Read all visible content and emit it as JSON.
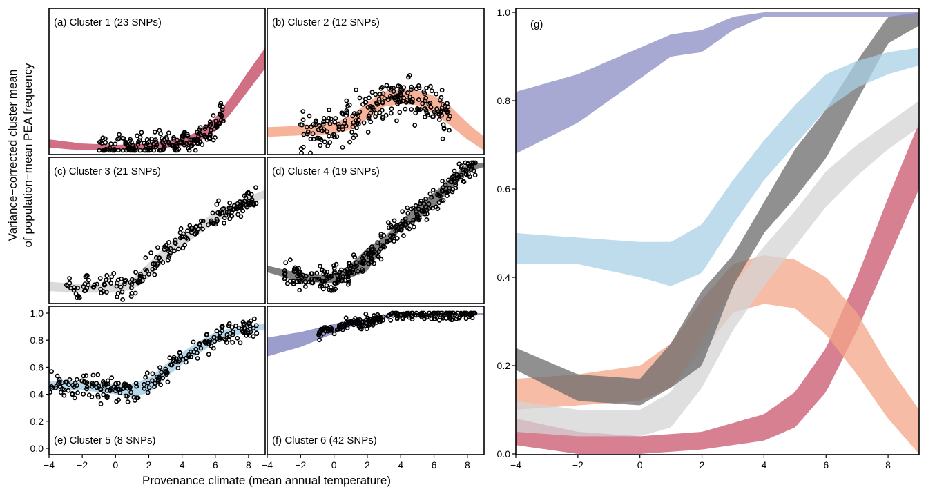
{
  "figure": {
    "ylabel_line1": "Variance−corrected cluster mean",
    "ylabel_line2": "of population−mean PEA frequency",
    "xlabel": "Provenance climate (mean annual temperature)"
  },
  "colors": {
    "cluster1": "#c9566e",
    "cluster2": "#f4a688",
    "cluster3": "#d4d4d4",
    "cluster4": "#6b6b6b",
    "cluster5": "#a9d0e6",
    "cluster6": "#8a8cc4"
  },
  "x_ticks": [
    "−4",
    "−2",
    "0",
    "2",
    "4",
    "6",
    "8"
  ],
  "y_ticks_small": [
    "0.0",
    "0.2",
    "0.4",
    "0.6",
    "0.8",
    "1.0"
  ],
  "y_ticks_g": [
    "0.0",
    "0.2",
    "0.4",
    "0.6",
    "0.8",
    "1.0"
  ],
  "chart_data": [
    {
      "panel": "a",
      "type": "scatter",
      "label": "(a) Cluster 1 (23 SNPs)",
      "cluster": 1,
      "xlim": [
        -4,
        9
      ],
      "ylim": [
        0,
        1
      ],
      "band": {
        "x": [
          -4,
          -2,
          0,
          2,
          4,
          5,
          6,
          7,
          8,
          9
        ],
        "lower": [
          0.02,
          0.0,
          0.0,
          0.01,
          0.03,
          0.06,
          0.14,
          0.28,
          0.44,
          0.6
        ],
        "upper": [
          0.08,
          0.05,
          0.04,
          0.05,
          0.09,
          0.14,
          0.24,
          0.4,
          0.58,
          0.75
        ]
      },
      "points_summary": "dense near 0 for x in [-1,5], rising scatter above x=5 up to ~0.9"
    },
    {
      "panel": "b",
      "type": "scatter",
      "label": "(b) Cluster 2 (12 SNPs)",
      "cluster": 2,
      "xlim": [
        -4,
        9
      ],
      "ylim": [
        0,
        1
      ],
      "band": {
        "x": [
          -4,
          -2,
          0,
          1,
          2,
          3,
          4,
          5,
          6,
          7,
          8,
          9
        ],
        "lower": [
          0.1,
          0.11,
          0.12,
          0.15,
          0.23,
          0.32,
          0.34,
          0.33,
          0.27,
          0.18,
          0.08,
          0.0
        ],
        "upper": [
          0.17,
          0.18,
          0.2,
          0.25,
          0.35,
          0.43,
          0.45,
          0.44,
          0.4,
          0.32,
          0.2,
          0.1
        ]
      },
      "points_summary": "broad spread 0-0.9 centred on x in [1,4]"
    },
    {
      "panel": "c",
      "type": "scatter",
      "label": "(c) Cluster 3 (21 SNPs)",
      "cluster": 3,
      "xlim": [
        -4,
        9
      ],
      "ylim": [
        0,
        1
      ],
      "band": {
        "x": [
          -4,
          -2,
          0,
          1,
          2,
          3,
          4,
          5,
          6,
          7,
          8,
          9
        ],
        "lower": [
          0.05,
          0.04,
          0.04,
          0.06,
          0.15,
          0.28,
          0.38,
          0.47,
          0.56,
          0.63,
          0.69,
          0.74
        ],
        "upper": [
          0.12,
          0.1,
          0.1,
          0.14,
          0.26,
          0.38,
          0.47,
          0.55,
          0.64,
          0.7,
          0.75,
          0.8
        ]
      },
      "points_summary": "increasing trend from ~0.05 at x=-2 to ~0.9 at x=8"
    },
    {
      "panel": "d",
      "type": "scatter",
      "label": "(d) Cluster 4 (19 SNPs)",
      "cluster": 4,
      "xlim": [
        -4,
        9
      ],
      "ylim": [
        0,
        1
      ],
      "band": {
        "x": [
          -4,
          -2,
          0,
          1,
          2,
          3,
          4,
          5,
          6,
          7,
          8,
          9
        ],
        "lower": [
          0.19,
          0.12,
          0.11,
          0.15,
          0.2,
          0.38,
          0.5,
          0.58,
          0.67,
          0.8,
          0.93,
          0.97
        ],
        "upper": [
          0.24,
          0.18,
          0.17,
          0.25,
          0.37,
          0.45,
          0.57,
          0.69,
          0.78,
          0.89,
          0.99,
          1.0
        ]
      },
      "points_summary": "increasing trend from ~0.1 at x=-2 to ~1.0 at x=8"
    },
    {
      "panel": "e",
      "type": "scatter",
      "label": "(e) Cluster 5 (8 SNPs)",
      "cluster": 5,
      "xlim": [
        -4,
        9
      ],
      "ylim": [
        0,
        1
      ],
      "band": {
        "x": [
          -4,
          -2,
          0,
          1,
          2,
          3,
          4,
          5,
          6,
          7,
          8,
          9
        ],
        "lower": [
          0.43,
          0.43,
          0.4,
          0.38,
          0.41,
          0.52,
          0.62,
          0.7,
          0.78,
          0.83,
          0.86,
          0.88
        ],
        "upper": [
          0.5,
          0.49,
          0.48,
          0.48,
          0.52,
          0.62,
          0.71,
          0.79,
          0.86,
          0.89,
          0.91,
          0.92
        ]
      },
      "points_summary": "sigmoid rise from ~0.4 at x=0 to ~0.9 at x=8"
    },
    {
      "panel": "f",
      "type": "scatter",
      "label": "(f) Cluster 6 (42 SNPs)",
      "cluster": 6,
      "xlim": [
        -4,
        9
      ],
      "ylim": [
        0,
        1
      ],
      "band": {
        "x": [
          -4,
          -2,
          0,
          1,
          2,
          3,
          4,
          5,
          6,
          7,
          8,
          9
        ],
        "lower": [
          0.68,
          0.75,
          0.85,
          0.9,
          0.91,
          0.96,
          0.99,
          0.99,
          0.99,
          0.99,
          0.99,
          0.99
        ],
        "upper": [
          0.82,
          0.86,
          0.92,
          0.95,
          0.96,
          0.99,
          1.0,
          1.0,
          1.0,
          1.0,
          1.0,
          1.0
        ]
      },
      "points_summary": "mostly near 1.0 for x in [-1,8], a few lower points down to 0.4"
    },
    {
      "panel": "g",
      "type": "area",
      "label": "(g)",
      "xlim": [
        -4,
        9
      ],
      "ylim": [
        0,
        1
      ],
      "series": [
        {
          "cluster": 1,
          "x": [
            -4,
            -2,
            0,
            2,
            4,
            5,
            6,
            7,
            8,
            9
          ],
          "lower": [
            0.02,
            0.0,
            0.0,
            0.01,
            0.03,
            0.06,
            0.14,
            0.28,
            0.44,
            0.6
          ],
          "upper": [
            0.08,
            0.05,
            0.04,
            0.05,
            0.09,
            0.14,
            0.24,
            0.4,
            0.58,
            0.75
          ]
        },
        {
          "cluster": 2,
          "x": [
            -4,
            -2,
            0,
            1,
            2,
            3,
            4,
            5,
            6,
            7,
            8,
            9
          ],
          "lower": [
            0.1,
            0.11,
            0.12,
            0.15,
            0.23,
            0.32,
            0.34,
            0.33,
            0.27,
            0.18,
            0.08,
            0.0
          ],
          "upper": [
            0.17,
            0.18,
            0.2,
            0.25,
            0.35,
            0.43,
            0.45,
            0.44,
            0.4,
            0.32,
            0.2,
            0.1
          ]
        },
        {
          "cluster": 3,
          "x": [
            -4,
            -2,
            0,
            1,
            2,
            3,
            4,
            5,
            6,
            7,
            8,
            9
          ],
          "lower": [
            0.05,
            0.04,
            0.04,
            0.06,
            0.15,
            0.28,
            0.38,
            0.47,
            0.56,
            0.63,
            0.69,
            0.74
          ],
          "upper": [
            0.12,
            0.1,
            0.1,
            0.14,
            0.26,
            0.38,
            0.47,
            0.55,
            0.64,
            0.7,
            0.75,
            0.8
          ]
        },
        {
          "cluster": 4,
          "x": [
            -4,
            -2,
            0,
            1,
            2,
            3,
            4,
            5,
            6,
            7,
            8,
            9
          ],
          "lower": [
            0.19,
            0.12,
            0.11,
            0.15,
            0.2,
            0.38,
            0.5,
            0.58,
            0.67,
            0.8,
            0.93,
            0.97
          ],
          "upper": [
            0.24,
            0.18,
            0.17,
            0.25,
            0.37,
            0.45,
            0.57,
            0.69,
            0.78,
            0.89,
            0.99,
            1.0
          ]
        },
        {
          "cluster": 5,
          "x": [
            -4,
            -2,
            0,
            1,
            2,
            3,
            4,
            5,
            6,
            7,
            8,
            9
          ],
          "lower": [
            0.43,
            0.43,
            0.4,
            0.38,
            0.41,
            0.52,
            0.62,
            0.7,
            0.78,
            0.83,
            0.86,
            0.88
          ],
          "upper": [
            0.5,
            0.49,
            0.48,
            0.48,
            0.52,
            0.62,
            0.71,
            0.79,
            0.86,
            0.89,
            0.91,
            0.92
          ]
        },
        {
          "cluster": 6,
          "x": [
            -4,
            -2,
            0,
            1,
            2,
            3,
            4,
            5,
            6,
            7,
            8,
            9
          ],
          "lower": [
            0.68,
            0.75,
            0.85,
            0.9,
            0.91,
            0.96,
            0.99,
            0.99,
            0.99,
            0.99,
            0.99,
            0.99
          ],
          "upper": [
            0.82,
            0.86,
            0.92,
            0.95,
            0.96,
            0.99,
            1.0,
            1.0,
            1.0,
            1.0,
            1.0,
            1.0
          ]
        }
      ]
    }
  ]
}
